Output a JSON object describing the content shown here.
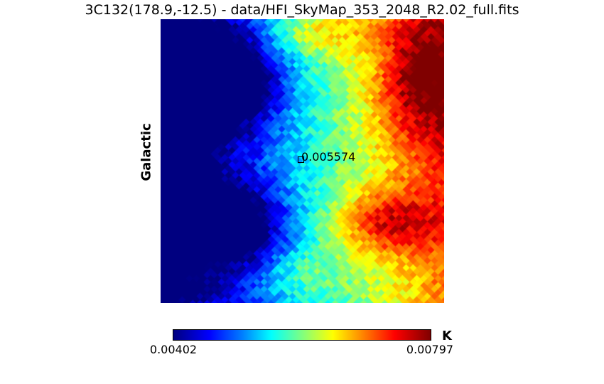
{
  "title": "3C132(178.9,-12.5) - data/HFI_SkyMap_353_2048_R2.02_full.fits",
  "ylabel": "Galactic",
  "annotation": "0.005574",
  "colorbar": {
    "min_label": "0.00402",
    "max_label": "0.00797",
    "unit": "K",
    "colormap": "jet"
  },
  "chart_data": {
    "type": "heatmap",
    "title": "3C132(178.9,-12.5) - data/HFI_SkyMap_353_2048_R2.02_full.fits",
    "ylabel": "Galactic",
    "value_range": [
      0.00402,
      0.00797
    ],
    "unit": "K",
    "center_value": 0.005574,
    "grid": false
  }
}
